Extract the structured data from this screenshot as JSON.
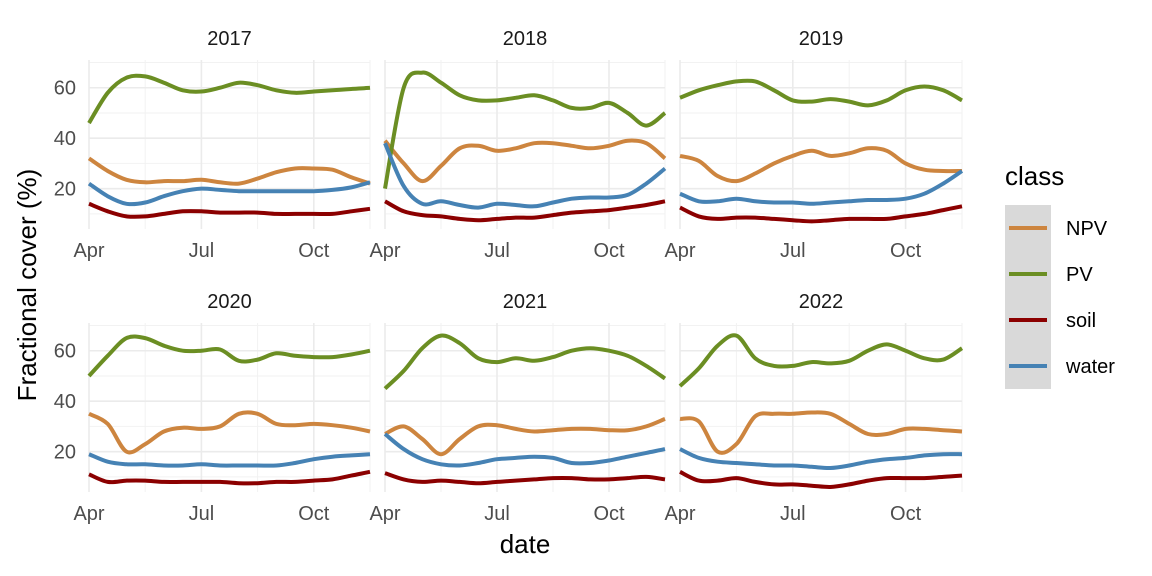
{
  "chart_data": {
    "type": "line",
    "xlabel": "date",
    "ylabel": "Fractional cover (%)",
    "x_ticks": [
      "Apr",
      "Jul",
      "Oct"
    ],
    "x_tick_months": [
      4,
      7,
      10
    ],
    "x_range_months": [
      4,
      11.5
    ],
    "y_ticks": [
      20,
      40,
      60
    ],
    "ylim": [
      4,
      71
    ],
    "grid": true,
    "legend_title": "class",
    "legend_position": "right",
    "series_styles": [
      {
        "name": "NPV",
        "color": "#cd853f"
      },
      {
        "name": "PV",
        "color": "#6b8e23"
      },
      {
        "name": "soil",
        "color": "#8b0000"
      },
      {
        "name": "water",
        "color": "#4682b4"
      }
    ],
    "panels": [
      {
        "label": "2017",
        "series": [
          {
            "name": "NPV",
            "x": [
              4,
              4.5,
              5,
              5.5,
              6,
              6.5,
              7,
              7.5,
              8,
              8.5,
              9,
              9.5,
              10,
              10.5,
              11,
              11.5
            ],
            "y": [
              32,
              27,
              23.5,
              22.5,
              23,
              23,
              23.5,
              22.5,
              22,
              24,
              26.5,
              28,
              28,
              27.5,
              24.5,
              22
            ]
          },
          {
            "name": "PV",
            "x": [
              4,
              4.5,
              5,
              5.5,
              6,
              6.5,
              7,
              7.5,
              8,
              8.5,
              9,
              9.5,
              10,
              10.5,
              11,
              11.5
            ],
            "y": [
              46,
              58,
              64,
              64.5,
              62,
              59,
              58.5,
              60,
              62,
              61,
              59,
              58,
              58.5,
              59,
              59.5,
              60
            ]
          },
          {
            "name": "soil",
            "x": [
              4,
              4.5,
              5,
              5.5,
              6,
              6.5,
              7,
              7.5,
              8,
              8.5,
              9,
              9.5,
              10,
              10.5,
              11,
              11.5
            ],
            "y": [
              14,
              11,
              9,
              9,
              10,
              11,
              11,
              10.5,
              10.5,
              10.5,
              10,
              10,
              10,
              10,
              11,
              12
            ]
          },
          {
            "name": "water",
            "x": [
              4,
              4.5,
              5,
              5.5,
              6,
              6.5,
              7,
              7.5,
              8,
              8.5,
              9,
              9.5,
              10,
              10.5,
              11,
              11.5
            ],
            "y": [
              22,
              17,
              14,
              14.5,
              17,
              19,
              20,
              19.5,
              19,
              19,
              19,
              19,
              19,
              19.5,
              20.5,
              22.5
            ]
          }
        ]
      },
      {
        "label": "2018",
        "series": [
          {
            "name": "NPV",
            "x": [
              4,
              4.5,
              5,
              5.5,
              6,
              6.5,
              7,
              7.5,
              8,
              8.5,
              9,
              9.5,
              10,
              10.5,
              11,
              11.5
            ],
            "y": [
              39,
              30,
              23,
              29,
              36,
              37,
              35,
              36,
              38,
              38,
              37,
              36,
              37,
              39,
              38,
              32
            ]
          },
          {
            "name": "PV",
            "x": [
              4,
              4.5,
              5,
              5.5,
              6,
              6.5,
              7,
              7.5,
              8,
              8.5,
              9,
              9.5,
              10,
              10.5,
              11,
              11.5
            ],
            "y": [
              20,
              60,
              66,
              62,
              57,
              55,
              55,
              56,
              57,
              55,
              52,
              52,
              54,
              50,
              45,
              50
            ]
          },
          {
            "name": "soil",
            "x": [
              4,
              4.5,
              5,
              5.5,
              6,
              6.5,
              7,
              7.5,
              8,
              8.5,
              9,
              9.5,
              10,
              10.5,
              11,
              11.5
            ],
            "y": [
              15,
              11,
              9.5,
              9,
              8,
              7.5,
              8,
              8.5,
              8.5,
              9.5,
              10.5,
              11,
              11.5,
              12.5,
              13.5,
              15
            ]
          },
          {
            "name": "water",
            "x": [
              4,
              4.5,
              5,
              5.5,
              6,
              6.5,
              7,
              7.5,
              8,
              8.5,
              9,
              9.5,
              10,
              10.5,
              11,
              11.5
            ],
            "y": [
              38,
              21,
              14,
              15,
              13.5,
              12.5,
              14,
              13.5,
              13,
              14.5,
              16,
              16.5,
              16.5,
              17.5,
              22,
              28
            ]
          }
        ]
      },
      {
        "label": "2019",
        "series": [
          {
            "name": "NPV",
            "x": [
              4,
              4.5,
              5,
              5.5,
              6,
              6.5,
              7,
              7.5,
              8,
              8.5,
              9,
              9.5,
              10,
              10.5,
              11,
              11.5
            ],
            "y": [
              33,
              31,
              25,
              23,
              26,
              30,
              33,
              35,
              33,
              34,
              36,
              35,
              30,
              27.5,
              27,
              27
            ]
          },
          {
            "name": "PV",
            "x": [
              4,
              4.5,
              5,
              5.5,
              6,
              6.5,
              7,
              7.5,
              8,
              8.5,
              9,
              9.5,
              10,
              10.5,
              11,
              11.5
            ],
            "y": [
              56,
              59,
              61,
              62.5,
              62.5,
              59,
              55,
              54.5,
              55.5,
              54.5,
              53,
              55,
              59,
              60.5,
              59,
              55
            ]
          },
          {
            "name": "soil",
            "x": [
              4,
              4.5,
              5,
              5.5,
              6,
              6.5,
              7,
              7.5,
              8,
              8.5,
              9,
              9.5,
              10,
              10.5,
              11,
              11.5
            ],
            "y": [
              12.5,
              9,
              8,
              8.5,
              8.5,
              8,
              7.5,
              7,
              7.5,
              8,
              8,
              8,
              9,
              10,
              11.5,
              13
            ]
          },
          {
            "name": "water",
            "x": [
              4,
              4.5,
              5,
              5.5,
              6,
              6.5,
              7,
              7.5,
              8,
              8.5,
              9,
              9.5,
              10,
              10.5,
              11,
              11.5
            ],
            "y": [
              18,
              15,
              15,
              16,
              15,
              14.5,
              14.5,
              14,
              14.5,
              15,
              15.5,
              15.5,
              16,
              18,
              22,
              27
            ]
          }
        ]
      },
      {
        "label": "2020",
        "series": [
          {
            "name": "NPV",
            "x": [
              4,
              4.5,
              5,
              5.5,
              6,
              6.5,
              7,
              7.5,
              8,
              8.5,
              9,
              9.5,
              10,
              10.5,
              11,
              11.5
            ],
            "y": [
              35,
              31,
              20,
              23,
              28,
              29.5,
              29,
              30,
              35,
              35,
              31,
              30.5,
              31,
              30.5,
              29.5,
              28
            ]
          },
          {
            "name": "PV",
            "x": [
              4,
              4.5,
              5,
              5.5,
              6,
              6.5,
              7,
              7.5,
              8,
              8.5,
              9,
              9.5,
              10,
              10.5,
              11,
              11.5
            ],
            "y": [
              50,
              58,
              65,
              65,
              62,
              60,
              60,
              60.5,
              56,
              56.5,
              59,
              58,
              57.5,
              57.5,
              58.5,
              60
            ]
          },
          {
            "name": "soil",
            "x": [
              4,
              4.5,
              5,
              5.5,
              6,
              6.5,
              7,
              7.5,
              8,
              8.5,
              9,
              9.5,
              10,
              10.5,
              11,
              11.5
            ],
            "y": [
              11,
              8,
              8.5,
              8.5,
              8,
              8,
              8,
              8,
              7.5,
              7.5,
              8,
              8,
              8.5,
              9,
              10.5,
              12
            ]
          },
          {
            "name": "water",
            "x": [
              4,
              4.5,
              5,
              5.5,
              6,
              6.5,
              7,
              7.5,
              8,
              8.5,
              9,
              9.5,
              10,
              10.5,
              11,
              11.5
            ],
            "y": [
              19,
              16,
              15,
              15,
              14.5,
              14.5,
              15,
              14.5,
              14.5,
              14.5,
              14.5,
              15.5,
              17,
              18,
              18.5,
              19
            ]
          }
        ]
      },
      {
        "label": "2021",
        "series": [
          {
            "name": "NPV",
            "x": [
              4,
              4.5,
              5,
              5.5,
              6,
              6.5,
              7,
              7.5,
              8,
              8.5,
              9,
              9.5,
              10,
              10.5,
              11,
              11.5
            ],
            "y": [
              27,
              30,
              25,
              19,
              25,
              30,
              30.5,
              29,
              28,
              28.5,
              29,
              29,
              28.5,
              28.5,
              30,
              33
            ]
          },
          {
            "name": "PV",
            "x": [
              4,
              4.5,
              5,
              5.5,
              6,
              6.5,
              7,
              7.5,
              8,
              8.5,
              9,
              9.5,
              10,
              10.5,
              11,
              11.5
            ],
            "y": [
              45,
              52,
              61,
              66,
              63,
              57,
              55.5,
              57,
              56,
              57.5,
              60,
              61,
              60,
              58,
              54,
              49
            ]
          },
          {
            "name": "soil",
            "x": [
              4,
              4.5,
              5,
              5.5,
              6,
              6.5,
              7,
              7.5,
              8,
              8.5,
              9,
              9.5,
              10,
              10.5,
              11,
              11.5
            ],
            "y": [
              11.5,
              9,
              8,
              8.5,
              8,
              7.5,
              8,
              8.5,
              9,
              9.5,
              9.5,
              9,
              9,
              9.5,
              10,
              9
            ]
          },
          {
            "name": "water",
            "x": [
              4,
              4.5,
              5,
              5.5,
              6,
              6.5,
              7,
              7.5,
              8,
              8.5,
              9,
              9.5,
              10,
              10.5,
              11,
              11.5
            ],
            "y": [
              27,
              21,
              17,
              15,
              14.5,
              15.5,
              17,
              17.5,
              18,
              17.5,
              15.5,
              15.5,
              16.5,
              18,
              19.5,
              21
            ]
          }
        ]
      },
      {
        "label": "2022",
        "series": [
          {
            "name": "NPV",
            "x": [
              4,
              4.5,
              5,
              5.5,
              6,
              6.5,
              7,
              7.5,
              8,
              8.5,
              9,
              9.5,
              10,
              10.5,
              11,
              11.5
            ],
            "y": [
              33,
              32,
              20,
              23,
              34,
              35,
              35,
              35.5,
              35,
              31,
              27,
              27,
              29,
              29,
              28.5,
              28
            ]
          },
          {
            "name": "PV",
            "x": [
              4,
              4.5,
              5,
              5.5,
              6,
              6.5,
              7,
              7.5,
              8,
              8.5,
              9,
              9.5,
              10,
              10.5,
              11,
              11.5
            ],
            "y": [
              46,
              53,
              62,
              66,
              57,
              54,
              54,
              55.5,
              55,
              56,
              60,
              62.5,
              60,
              57,
              56.5,
              61
            ]
          },
          {
            "name": "soil",
            "x": [
              4,
              4.5,
              5,
              5.5,
              6,
              6.5,
              7,
              7.5,
              8,
              8.5,
              9,
              9.5,
              10,
              10.5,
              11,
              11.5
            ],
            "y": [
              12,
              8.5,
              8.5,
              9.5,
              8,
              7,
              7,
              6.5,
              6,
              7,
              8.5,
              9.5,
              9.5,
              9.5,
              10,
              10.5
            ]
          },
          {
            "name": "water",
            "x": [
              4,
              4.5,
              5,
              5.5,
              6,
              6.5,
              7,
              7.5,
              8,
              8.5,
              9,
              9.5,
              10,
              10.5,
              11,
              11.5
            ],
            "y": [
              21,
              17.5,
              16,
              15.5,
              15,
              14.5,
              14.5,
              14,
              13.5,
              14.5,
              16,
              17,
              17.5,
              18.5,
              19,
              19
            ]
          }
        ]
      }
    ]
  }
}
